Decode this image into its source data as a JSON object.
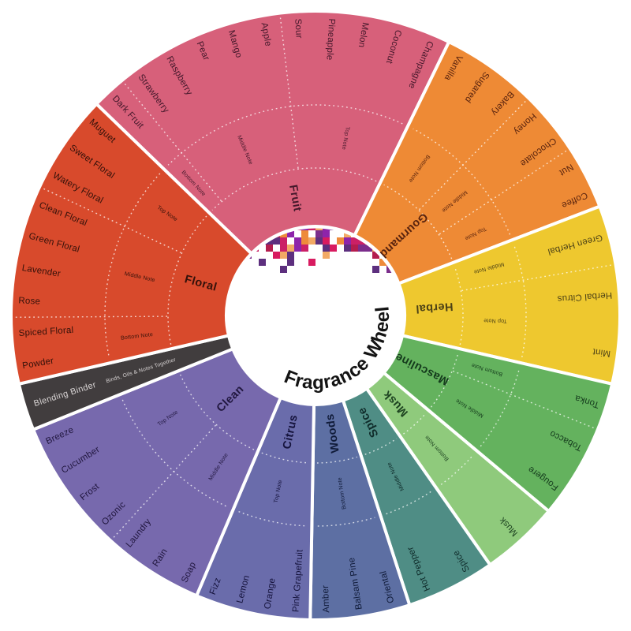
{
  "title": "Fragrance Wheel",
  "center": {
    "label": "Fragrance Wheel",
    "text_color": "#141414",
    "mosaic_palette": [
      "#cb2066",
      "#b41d4e",
      "#5d2f7e",
      "#7b2d8b",
      "#ee8b3b",
      "#f2a965",
      "#8e24aa",
      "#d81b60"
    ]
  },
  "note_labels": {
    "top": "Top Note",
    "middle": "Middle Note",
    "bottom": "Bottom Note"
  },
  "segments": [
    {
      "id": "fruit",
      "name": "Fruit",
      "color": "#d7607a",
      "text": "#44182b",
      "start": 64,
      "end": 136,
      "groups": [
        {
          "note": "top",
          "items": [
            "Champagne",
            "Coconut",
            "Melon",
            "Pineapple",
            "Sour"
          ]
        },
        {
          "note": "middle",
          "items": [
            "Apple",
            "Mango",
            "Pear",
            "Raspberry",
            "Strawberry"
          ]
        },
        {
          "note": "bottom",
          "items": [
            "Dark Fruit"
          ]
        }
      ]
    },
    {
      "id": "gourmand",
      "name": "Gourmand",
      "color": "#ee8a35",
      "text": "#59230e",
      "start": 21,
      "end": 64,
      "groups": [
        {
          "note": "top",
          "items": [
            "Coffee",
            "Nut"
          ]
        },
        {
          "note": "middle",
          "items": [
            "Chocolate",
            "Honey"
          ]
        },
        {
          "note": "bottom",
          "items": [
            "Bakery",
            "Sugared",
            "Vanilla"
          ]
        }
      ]
    },
    {
      "id": "herbal",
      "name": "Herbal",
      "color": "#eec82f",
      "text": "#4c4116",
      "start": -13,
      "end": 21,
      "groups": [
        {
          "note": "top",
          "items": [
            "Mint",
            "Herbal Citrus"
          ]
        },
        {
          "note": "middle",
          "items": [
            "Green Herbal"
          ]
        }
      ]
    },
    {
      "id": "masculine",
      "name": "Masculine",
      "color": "#64b25e",
      "text": "#143a1c",
      "start": -40,
      "end": -13,
      "groups": [
        {
          "note": "middle",
          "items": [
            "Fougere",
            "Tobacco"
          ]
        },
        {
          "note": "bottom",
          "items": [
            "Tonka"
          ]
        }
      ]
    },
    {
      "id": "musk",
      "name": "Musk",
      "color": "#8fca7c",
      "text": "#1d4220",
      "start": -55,
      "end": -40,
      "groups": [
        {
          "note": "bottom",
          "items": [
            "Musk"
          ]
        }
      ]
    },
    {
      "id": "spice",
      "name": "Spice",
      "color": "#4f8d85",
      "text": "#0f2b2a",
      "start": -72,
      "end": -55,
      "groups": [
        {
          "note": "middle",
          "items": [
            "Hot Pepper",
            "Spice"
          ]
        }
      ]
    },
    {
      "id": "woods",
      "name": "Woods",
      "color": "#5d6fa3",
      "text": "#101b39",
      "start": -91,
      "end": -72,
      "groups": [
        {
          "note": "bottom",
          "items": [
            "Amber",
            "Balsam Pine",
            "Oriental"
          ]
        }
      ]
    },
    {
      "id": "citrus",
      "name": "Citrus",
      "color": "#6a6cab",
      "text": "#14123b",
      "start": -113,
      "end": -91,
      "groups": [
        {
          "note": "top",
          "items": [
            "Fizz",
            "Lemon",
            "Orange",
            "Pink Grapefruit"
          ]
        }
      ]
    },
    {
      "id": "clean",
      "name": "Clean",
      "color": "#7769ad",
      "text": "#21173f",
      "start": -158,
      "end": -113,
      "groups": [
        {
          "note": "top",
          "items": [
            "Breeze",
            "Cucumber",
            "Frost",
            "Ozonic"
          ]
        },
        {
          "note": "middle",
          "items": [
            "Laundry",
            "Rain",
            "Soap"
          ]
        }
      ]
    },
    {
      "id": "binder",
      "name": "Blending Binder",
      "type": "binder",
      "color": "#413d3e",
      "text": "#d9d5d5",
      "start": -167,
      "end": -158,
      "outer_label": "Blending Binder",
      "mid_label": "Binds, Oils & Notes Together"
    },
    {
      "id": "floral",
      "name": "Floral",
      "color": "#d84a2c",
      "text": "#33110a",
      "start": 136,
      "end": 193,
      "groups": [
        {
          "note": "top",
          "items": [
            "Muguet",
            "Sweet Floral",
            "Watery Floral"
          ]
        },
        {
          "note": "middle",
          "items": [
            "Clean Floral",
            "Green Floral",
            "Lavender",
            "Rose"
          ]
        },
        {
          "note": "bottom",
          "items": [
            "Spiced Floral",
            "Powder"
          ]
        }
      ]
    }
  ]
}
